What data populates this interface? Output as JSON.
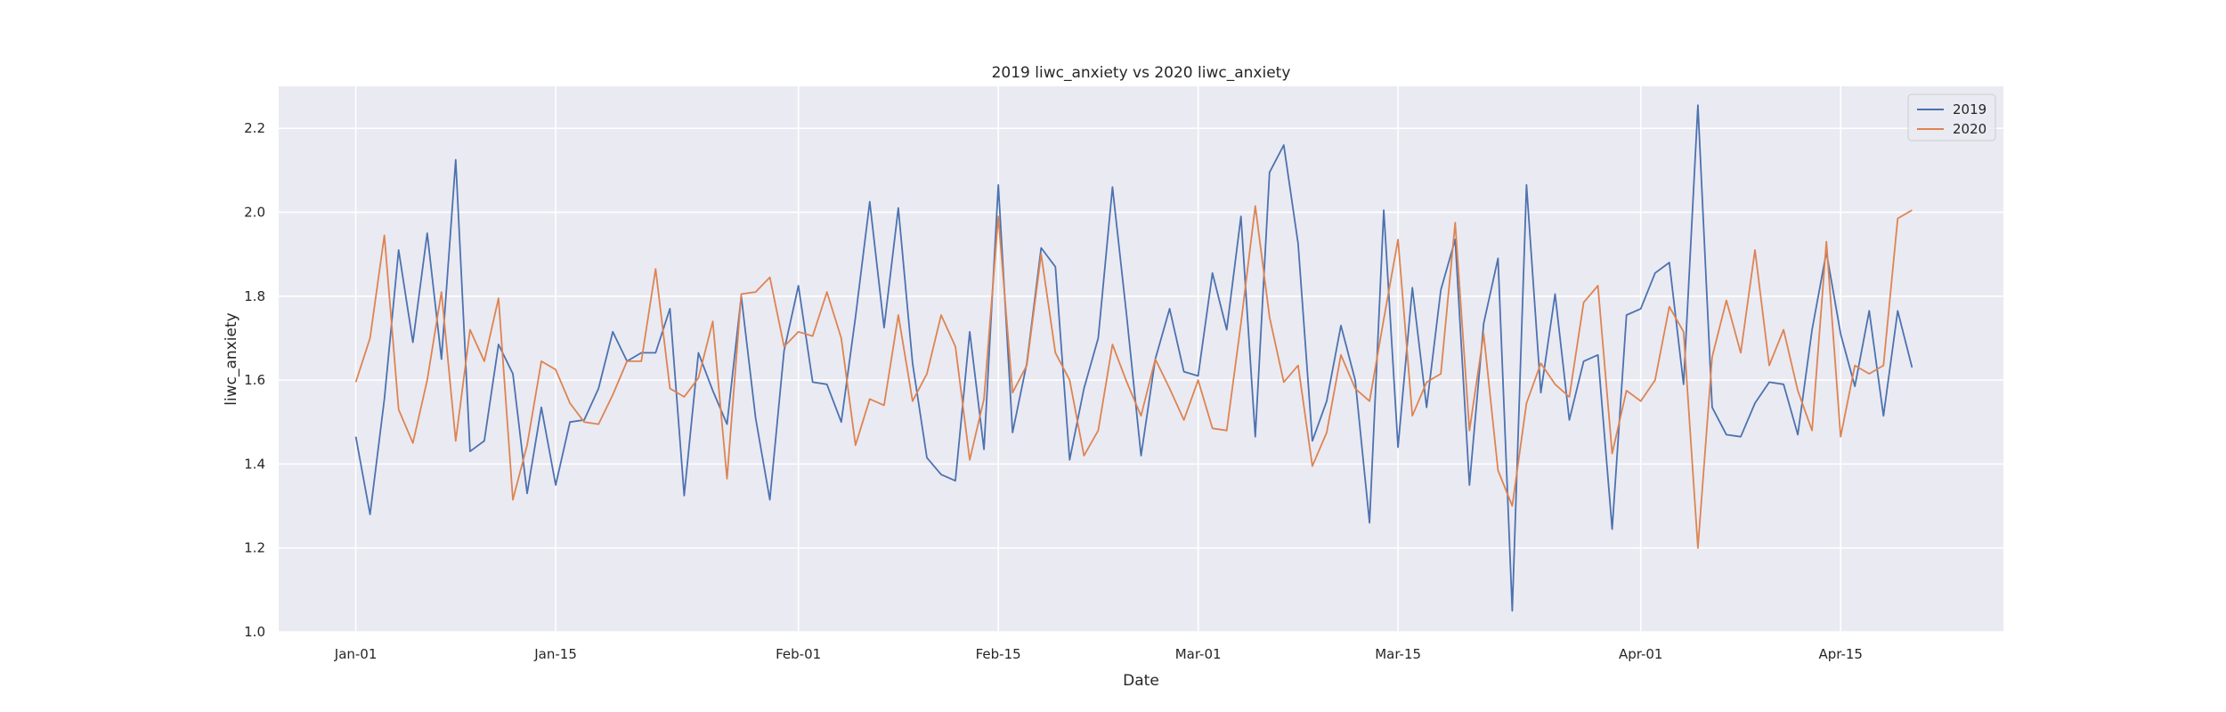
{
  "chart_data": {
    "type": "line",
    "title": "2019 liwc_anxiety vs 2020 liwc_anxiety",
    "xlabel": "Date",
    "ylabel": "liwc_anxiety",
    "x_start": "Jan-01",
    "x_ticks": [
      {
        "label": "Jan-01",
        "day": 0
      },
      {
        "label": "Jan-15",
        "day": 14
      },
      {
        "label": "Feb-01",
        "day": 31
      },
      {
        "label": "Feb-15",
        "day": 45
      },
      {
        "label": "Mar-01",
        "day": 59
      },
      {
        "label": "Mar-15",
        "day": 73
      },
      {
        "label": "Apr-01",
        "day": 90
      },
      {
        "label": "Apr-15",
        "day": 104
      }
    ],
    "xlim": [
      -5.4,
      115.4
    ],
    "ylim": [
      1.0,
      2.3
    ],
    "y_ticks": [
      1.0,
      1.2,
      1.4,
      1.6,
      1.8,
      2.0,
      2.2
    ],
    "grid": true,
    "background": "#eaeaf2",
    "legend": "top-right",
    "series": [
      {
        "name": "2019",
        "color": "#4c72b0",
        "values": [
          1.465,
          1.28,
          1.555,
          1.91,
          1.69,
          1.95,
          1.65,
          2.125,
          1.43,
          1.455,
          1.685,
          1.615,
          1.33,
          1.535,
          1.35,
          1.5,
          1.505,
          1.58,
          1.715,
          1.645,
          1.665,
          1.665,
          1.77,
          1.325,
          1.665,
          1.575,
          1.495,
          1.8,
          1.51,
          1.315,
          1.67,
          1.825,
          1.595,
          1.59,
          1.5,
          1.75,
          2.025,
          1.725,
          2.01,
          1.64,
          1.415,
          1.375,
          1.36,
          1.715,
          1.435,
          2.065,
          1.475,
          1.64,
          1.915,
          1.87,
          1.41,
          1.58,
          1.7,
          2.06,
          1.75,
          1.42,
          1.65,
          1.77,
          1.62,
          1.61,
          1.855,
          1.72,
          1.99,
          1.465,
          2.095,
          2.16,
          1.925,
          1.455,
          1.55,
          1.73,
          1.6,
          1.26,
          2.005,
          1.44,
          1.82,
          1.535,
          1.815,
          1.935,
          1.35,
          1.735,
          1.89,
          1.05,
          2.065,
          1.57,
          1.805,
          1.505,
          1.645,
          1.66,
          1.245,
          1.755,
          1.77,
          1.855,
          1.88,
          1.59,
          2.255,
          1.535,
          1.47,
          1.465,
          1.545,
          1.595,
          1.59,
          1.47,
          1.72,
          1.905,
          1.71,
          1.585,
          1.765,
          1.515,
          1.765,
          1.63
        ]
      },
      {
        "name": "2020",
        "color": "#dd8452",
        "values": [
          1.595,
          1.7,
          1.945,
          1.53,
          1.45,
          1.6,
          1.81,
          1.455,
          1.72,
          1.645,
          1.795,
          1.315,
          1.445,
          1.645,
          1.625,
          1.545,
          1.5,
          1.495,
          1.565,
          1.645,
          1.645,
          1.865,
          1.58,
          1.56,
          1.605,
          1.74,
          1.365,
          1.805,
          1.81,
          1.845,
          1.68,
          1.715,
          1.705,
          1.81,
          1.7,
          1.445,
          1.555,
          1.54,
          1.755,
          1.55,
          1.615,
          1.755,
          1.68,
          1.41,
          1.555,
          1.99,
          1.57,
          1.635,
          1.9,
          1.665,
          1.6,
          1.42,
          1.48,
          1.685,
          1.595,
          1.515,
          1.65,
          1.58,
          1.505,
          1.6,
          1.485,
          1.48,
          1.735,
          2.015,
          1.75,
          1.595,
          1.635,
          1.395,
          1.475,
          1.66,
          1.58,
          1.55,
          1.745,
          1.935,
          1.515,
          1.595,
          1.615,
          1.975,
          1.48,
          1.71,
          1.385,
          1.3,
          1.545,
          1.64,
          1.59,
          1.56,
          1.785,
          1.825,
          1.425,
          1.575,
          1.55,
          1.6,
          1.775,
          1.715,
          1.2,
          1.655,
          1.79,
          1.665,
          1.91,
          1.635,
          1.72,
          1.575,
          1.48,
          1.93,
          1.465,
          1.635,
          1.615,
          1.635,
          1.985,
          2.005
        ]
      }
    ]
  }
}
